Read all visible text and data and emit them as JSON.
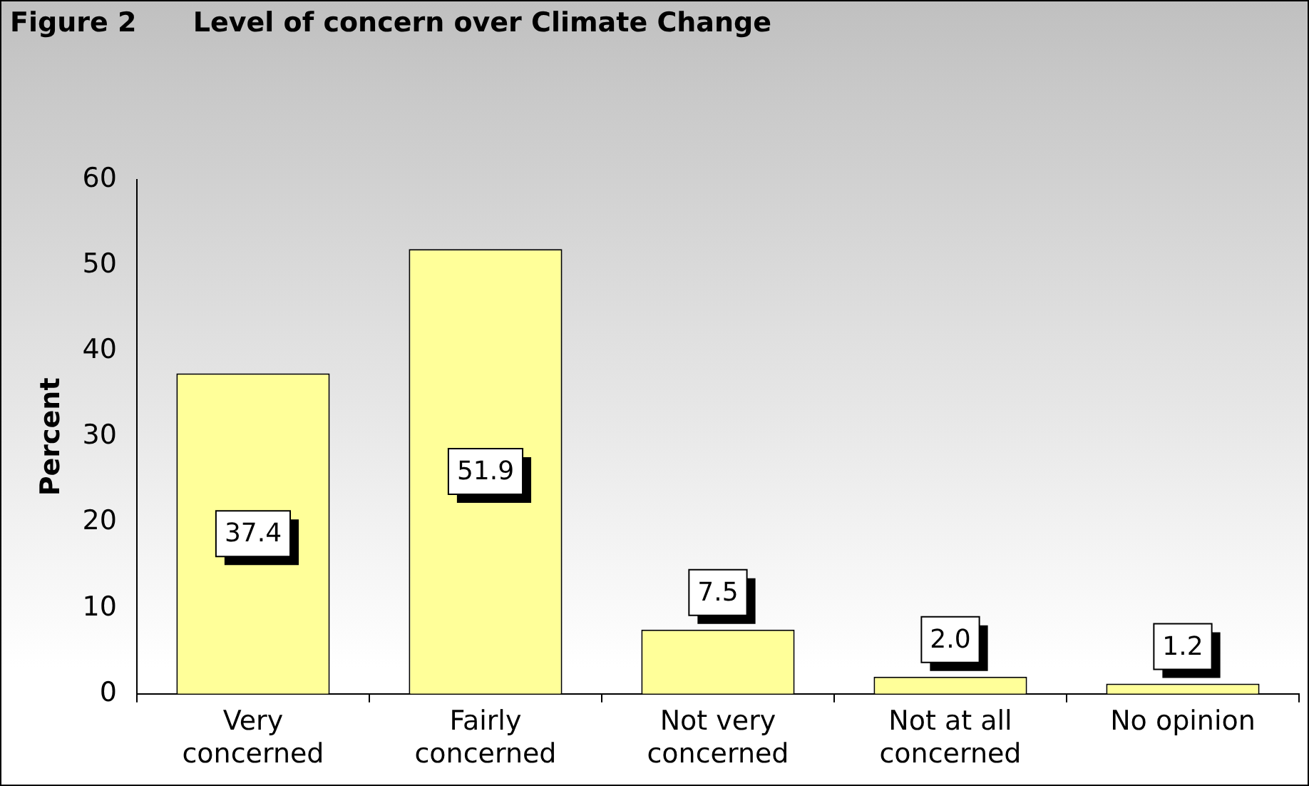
{
  "chart_data": {
    "type": "bar",
    "title": "Figure 2      Level of concern over Climate Change",
    "ylabel": "Percent",
    "categories": [
      "Very concerned",
      "Fairly concerned",
      "Not very concerned",
      "Not at all concerned",
      "No opinion"
    ],
    "values": [
      37.4,
      51.9,
      7.5,
      2.0,
      1.2
    ],
    "color": "#ffff99",
    "ylim": [
      0,
      60
    ],
    "yticks": [
      0,
      10,
      20,
      30,
      40,
      50,
      60
    ],
    "grid": false,
    "legend": false,
    "data_labels": true,
    "value_labels": [
      "37.4",
      "51.9",
      "7.5",
      "2.0",
      "1.2"
    ]
  }
}
